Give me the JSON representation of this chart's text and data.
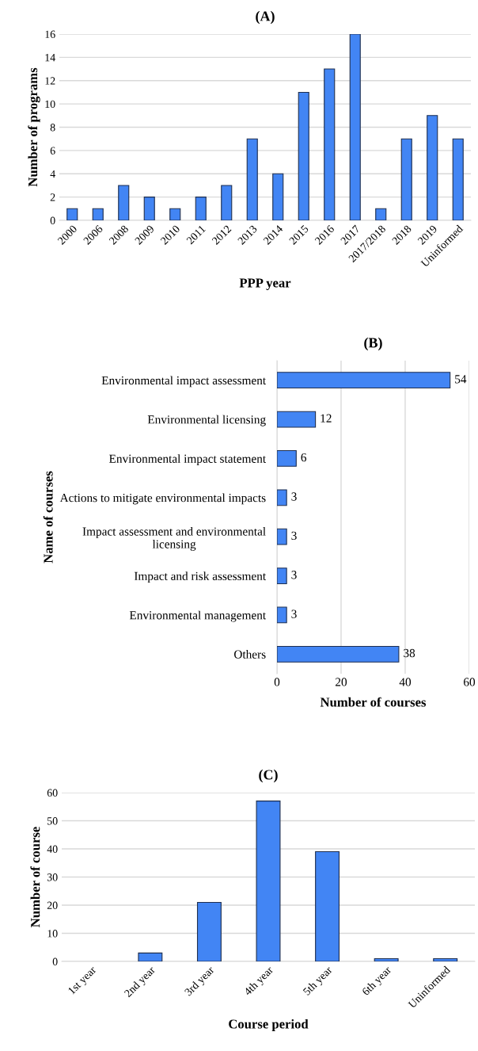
{
  "chart_data": [
    {
      "type": "bar",
      "title": "(A)",
      "xlabel": "PPP year",
      "ylabel": "Number of programs",
      "categories": [
        "2000",
        "2006",
        "2008",
        "2009",
        "2010",
        "2011",
        "2012",
        "2013",
        "2014",
        "2015",
        "2016",
        "2017",
        "2017/2018",
        "2018",
        "2019",
        "Uninformed"
      ],
      "values": [
        1,
        1,
        3,
        2,
        1,
        2,
        3,
        7,
        4,
        11,
        13,
        16,
        1,
        7,
        9,
        7
      ],
      "color": "#4285f4",
      "ylim": [
        0,
        16
      ],
      "yticks": [
        0,
        2,
        4,
        6,
        8,
        10,
        12,
        14,
        16
      ],
      "grid": "y"
    },
    {
      "type": "bar",
      "orientation": "horizontal",
      "title": "(B)",
      "xlabel": "Number of courses",
      "ylabel": "Name of courses",
      "categories": [
        "Environmental impact assessment",
        "Environmental licensing",
        "Environmental impact statement",
        "Actions to mitigate environmental impacts",
        "Impact assessment and environmental\nlicensing",
        "Impact and risk assessment",
        "Environmental management",
        "Others"
      ],
      "values": [
        54,
        12,
        6,
        3,
        3,
        3,
        3,
        38
      ],
      "color": "#4285f4",
      "xlim": [
        0,
        60
      ],
      "xticks": [
        0,
        20,
        40,
        60
      ],
      "grid": "x",
      "data_labels": true
    },
    {
      "type": "bar",
      "title": "(C)",
      "xlabel": "Course period",
      "ylabel": "Number of course",
      "categories": [
        "1st year",
        "2nd year",
        "3rd year",
        "4th year",
        "5th year",
        "6th year",
        "Uninformed"
      ],
      "values": [
        0,
        3,
        21,
        57,
        39,
        1,
        1
      ],
      "color": "#4285f4",
      "ylim": [
        0,
        60
      ],
      "yticks": [
        0,
        10,
        20,
        30,
        40,
        50,
        60
      ],
      "grid": "y"
    }
  ]
}
